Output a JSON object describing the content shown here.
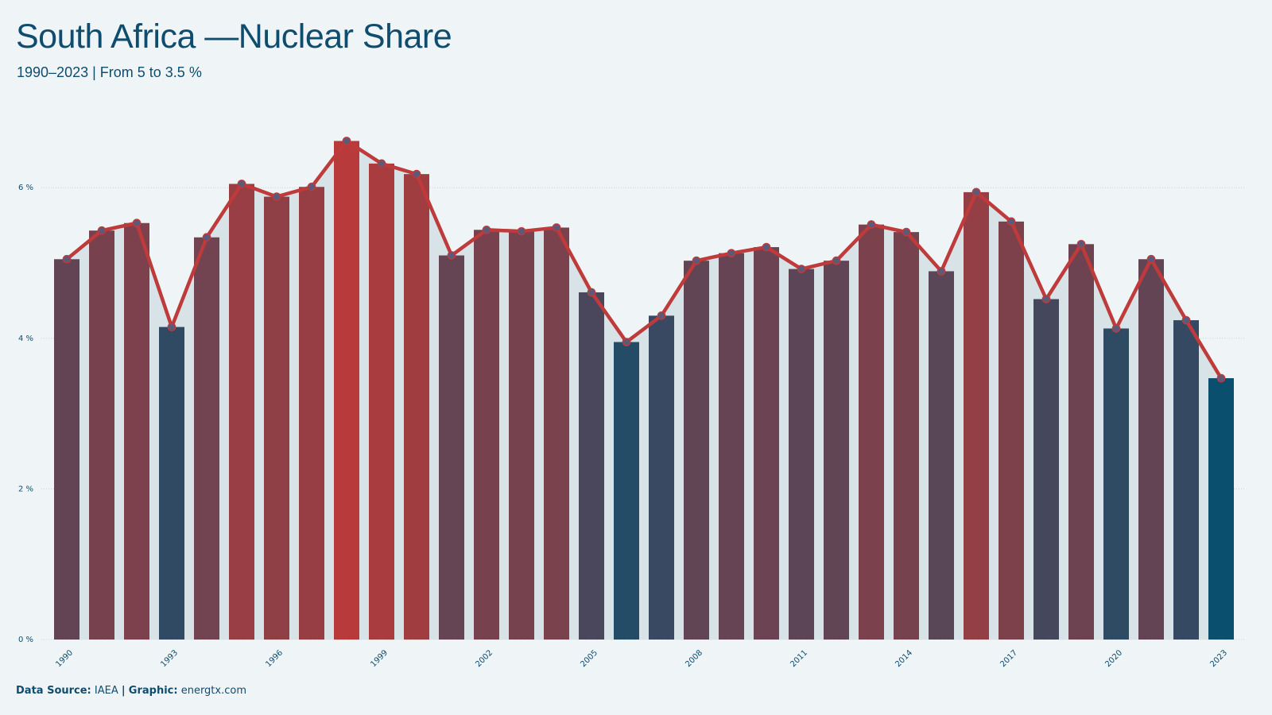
{
  "title": "South Africa —Nuclear Share",
  "subtitle": "1990–2023 | From 5 to 3.5 %",
  "footer": {
    "source_label": "Data Source:",
    "source_value": "IAEA",
    "separator": "|",
    "graphic_label": "Graphic:",
    "graphic_value": "energtx.com"
  },
  "colors": {
    "background": "#eff5f6",
    "title": "#0f4c6e",
    "line": "#bf3a3a",
    "marker": "#5a5a7a",
    "area": "#d7e3e6",
    "grid": "#c9d4d8",
    "bar_low": "#0b4f6f",
    "bar_high": "#b83a3a"
  },
  "chart_data": {
    "type": "bar",
    "x": [
      1990,
      1991,
      1992,
      1993,
      1994,
      1995,
      1996,
      1997,
      1998,
      1999,
      2000,
      2001,
      2002,
      2003,
      2004,
      2005,
      2006,
      2007,
      2008,
      2009,
      2010,
      2011,
      2012,
      2013,
      2014,
      2015,
      2016,
      2017,
      2018,
      2019,
      2020,
      2021,
      2022,
      2023
    ],
    "values": [
      5.05,
      5.43,
      5.53,
      4.15,
      5.34,
      6.05,
      5.88,
      6.01,
      6.62,
      6.32,
      6.18,
      5.1,
      5.44,
      5.42,
      5.47,
      4.61,
      3.95,
      4.3,
      5.03,
      5.13,
      5.21,
      4.92,
      5.03,
      5.51,
      5.41,
      4.89,
      5.94,
      5.55,
      4.52,
      5.25,
      4.13,
      5.05,
      4.24,
      3.47
    ],
    "x_tick_labels": [
      "1990",
      "1993",
      "1996",
      "1999",
      "2002",
      "2005",
      "2008",
      "2011",
      "2014",
      "2017",
      "2020",
      "2023"
    ],
    "y_tick_labels": [
      "0 %",
      "2 %",
      "4 %",
      "6 %"
    ],
    "y_ticks": [
      0,
      2,
      4,
      6
    ],
    "ylim": [
      0,
      7
    ],
    "overlay": "line with markers and shaded area",
    "grid": "horizontal dotted",
    "legend": "none"
  }
}
